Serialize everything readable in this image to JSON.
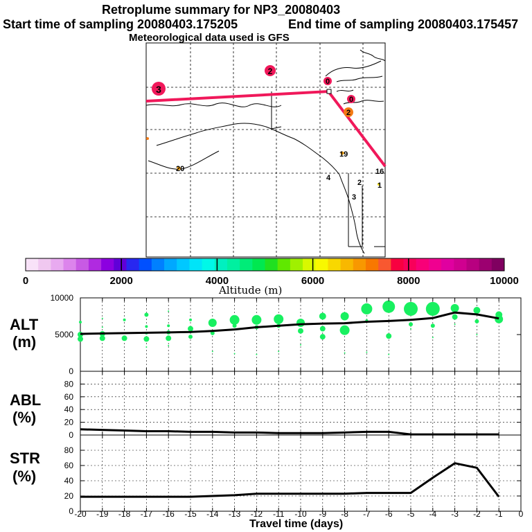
{
  "header": {
    "title": "Retroplume summary for NP3_20080403",
    "start_label": "Start time of sampling 20080403.175205",
    "end_label": "End time of sampling 20080403.175457",
    "met_label": "Meteorological data used is GFS"
  },
  "map": {
    "trajectory_color": "#f0185a",
    "markers": [
      {
        "label": "3",
        "size": "large",
        "color": "#f0185a"
      },
      {
        "label": "2",
        "size": "medium",
        "color": "#f0185a"
      },
      {
        "label": "0",
        "size": "small",
        "color": "#f0185a"
      },
      {
        "label": "0",
        "size": "small",
        "color": "#f0185a"
      },
      {
        "label": "2",
        "size": "small",
        "color": "#f47a14"
      }
    ],
    "day_labels": [
      "19",
      "20",
      "16",
      "4",
      "2",
      "1",
      "3"
    ]
  },
  "colorbar": {
    "ticks": [
      "0",
      "2000",
      "4000",
      "6000",
      "8000",
      "10000"
    ],
    "label": "Altitude (m)",
    "colors": [
      "#f8e2f8",
      "#f0c8f0",
      "#e8aaf0",
      "#dc84ec",
      "#c85ae4",
      "#b02ae0",
      "#8c00e0",
      "#6000d8",
      "#2828f0",
      "#0050ff",
      "#0080ff",
      "#00a8ff",
      "#00c8ff",
      "#00e4f8",
      "#00f8e8",
      "#00f0c0",
      "#00f0a0",
      "#00ec78",
      "#00e850",
      "#20e020",
      "#60e800",
      "#a0f000",
      "#d8f800",
      "#f8f800",
      "#f8d800",
      "#f8b800",
      "#f89800",
      "#f87800",
      "#f85830",
      "#f80040",
      "#f8005a",
      "#f80078",
      "#f00090",
      "#e000a0",
      "#d00090",
      "#b80080",
      "#9c0070",
      "#800060"
    ]
  },
  "chart_data": [
    {
      "type": "line",
      "panel": "ALT",
      "ylabel_top": "ALT",
      "ylabel_bottom": "(m)",
      "ylim": [
        0,
        10000
      ],
      "yticks": [
        "10000",
        "5000",
        "0"
      ],
      "x": [
        -20,
        -19,
        -18,
        -17,
        -16,
        -15,
        -14,
        -13,
        -12,
        -11,
        -10,
        -9,
        -8,
        -7,
        -6,
        -5,
        -4,
        -3,
        -2,
        -1
      ],
      "values": [
        5100,
        5150,
        5200,
        5250,
        5300,
        5350,
        5500,
        5700,
        6000,
        6200,
        6400,
        6500,
        6550,
        6750,
        6850,
        7000,
        7250,
        8000,
        7750,
        7200
      ],
      "dot_color": "#18f060",
      "scatter": [
        {
          "x": -20,
          "alts": [
            6700,
            5300,
            5000,
            4400
          ],
          "sizes": [
            2,
            1,
            4,
            4
          ]
        },
        {
          "x": -19,
          "alts": [
            7200,
            6000,
            5100,
            4500
          ],
          "sizes": [
            1,
            1,
            4,
            4
          ]
        },
        {
          "x": -18,
          "alts": [
            7000,
            5200,
            4500
          ],
          "sizes": [
            2,
            1,
            4
          ]
        },
        {
          "x": -17,
          "alts": [
            7700,
            6100,
            5200,
            4400,
            3300
          ],
          "sizes": [
            3,
            2,
            2,
            4,
            1
          ]
        },
        {
          "x": -16,
          "alts": [
            8200,
            6200,
            5300,
            4500,
            3500
          ],
          "sizes": [
            1,
            2,
            3,
            4,
            1
          ]
        },
        {
          "x": -15,
          "alts": [
            7000,
            5800,
            4700
          ],
          "sizes": [
            2,
            4,
            3
          ]
        },
        {
          "x": -14,
          "alts": [
            6600,
            5200,
            2700
          ],
          "sizes": [
            6,
            3,
            1
          ]
        },
        {
          "x": -13,
          "alts": [
            7000,
            6200,
            2400
          ],
          "sizes": [
            7,
            3,
            1
          ]
        },
        {
          "x": -12,
          "alts": [
            7000,
            6000,
            2300
          ],
          "sizes": [
            7,
            3,
            1
          ]
        },
        {
          "x": -11,
          "alts": [
            7100,
            6200,
            2700
          ],
          "sizes": [
            7,
            3,
            1
          ]
        },
        {
          "x": -10,
          "alts": [
            6600,
            5500,
            3600
          ],
          "sizes": [
            6,
            4,
            1
          ]
        },
        {
          "x": -9,
          "alts": [
            7500,
            5800,
            4700
          ],
          "sizes": [
            5,
            4,
            4
          ]
        },
        {
          "x": -8,
          "alts": [
            7500,
            5600,
            2500
          ],
          "sizes": [
            6,
            7,
            1
          ]
        },
        {
          "x": -7,
          "alts": [
            8500,
            6900,
            2600
          ],
          "sizes": [
            8,
            2,
            1
          ]
        },
        {
          "x": -6,
          "alts": [
            8800,
            4800,
            2300
          ],
          "sizes": [
            9,
            4,
            1
          ]
        },
        {
          "x": -5,
          "alts": [
            8500,
            6400,
            5800
          ],
          "sizes": [
            10,
            3,
            1
          ]
        },
        {
          "x": -4,
          "alts": [
            8500,
            6200,
            4600
          ],
          "sizes": [
            10,
            3,
            1
          ]
        },
        {
          "x": -3,
          "alts": [
            8600,
            7400,
            6400
          ],
          "sizes": [
            6,
            4,
            1
          ]
        },
        {
          "x": -2,
          "alts": [
            8300,
            6800,
            5000
          ],
          "sizes": [
            5,
            3,
            1
          ]
        },
        {
          "x": -1,
          "alts": [
            7700,
            7100
          ],
          "sizes": [
            5,
            6
          ]
        }
      ]
    },
    {
      "type": "line",
      "panel": "ABL",
      "ylabel_top": "ABL",
      "ylabel_bottom": "(%)",
      "ylim": [
        0,
        100
      ],
      "yticks": [
        "80",
        "60",
        "40",
        "20",
        "0"
      ],
      "x": [
        -20,
        -19,
        -18,
        -17,
        -16,
        -15,
        -14,
        -13,
        -12,
        -11,
        -10,
        -9,
        -8,
        -7,
        -6,
        -5,
        -4,
        -3,
        -2,
        -1
      ],
      "values": [
        9,
        8,
        7,
        6,
        6,
        5,
        5,
        4,
        4,
        3,
        3,
        3,
        4,
        5,
        5,
        1,
        1,
        1,
        1,
        1
      ]
    },
    {
      "type": "line",
      "panel": "STR",
      "ylabel_top": "STR",
      "ylabel_bottom": "(%)",
      "ylim": [
        0,
        100
      ],
      "yticks": [
        "80",
        "60",
        "40",
        "20",
        "0"
      ],
      "x": [
        -20,
        -19,
        -18,
        -17,
        -16,
        -15,
        -14,
        -13,
        -12,
        -11,
        -10,
        -9,
        -8,
        -7,
        -6,
        -5,
        -4,
        -3,
        -2,
        -1
      ],
      "values": [
        19,
        19,
        19,
        19,
        19,
        19,
        20,
        21,
        23,
        23,
        23,
        23,
        23,
        24,
        24,
        24,
        44,
        63,
        57,
        19
      ],
      "xlabel": "Travel time (days)",
      "xticks": [
        "-20",
        "-19",
        "-18",
        "-17",
        "-16",
        "-15",
        "-14",
        "-13",
        "-12",
        "-11",
        "-10",
        "-9",
        "-8",
        "-7",
        "-6",
        "-5",
        "-4",
        "-3",
        "-2",
        "-1",
        "0"
      ]
    }
  ]
}
